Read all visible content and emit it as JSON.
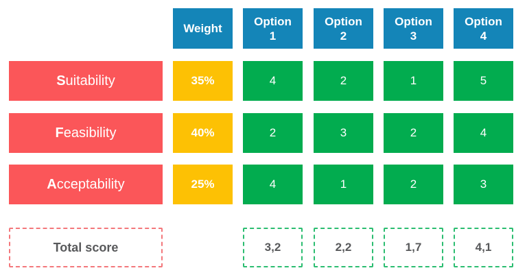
{
  "palette": {
    "blue": "#1485B8",
    "red": "#FB5659",
    "yellow": "#FDC104",
    "green": "#02AC4F",
    "dash_red": "#F3777B",
    "dash_green": "#2BBD70",
    "text_dark": "#58595B",
    "text_light": "#FFFFFF"
  },
  "header": {
    "weight": "Weight",
    "options": [
      {
        "word": "Option",
        "number": "1"
      },
      {
        "word": "Option",
        "number": "2"
      },
      {
        "word": "Option",
        "number": "3"
      },
      {
        "word": "Option",
        "number": "4"
      }
    ]
  },
  "criteria": [
    {
      "label": "Suitability",
      "initial": "S",
      "rest": "uitability",
      "weight": "35%",
      "scores": [
        "4",
        "2",
        "1",
        "5"
      ]
    },
    {
      "label": "Feasibility",
      "initial": "F",
      "rest": "easibility",
      "weight": "40%",
      "scores": [
        "2",
        "3",
        "2",
        "4"
      ]
    },
    {
      "label": "Acceptability",
      "initial": "A",
      "rest": "cceptability",
      "weight": "25%",
      "scores": [
        "4",
        "1",
        "2",
        "3"
      ]
    }
  ],
  "total": {
    "label": "Total score",
    "values": [
      "3,2",
      "2,2",
      "1,7",
      "4,1"
    ]
  },
  "chart_data": {
    "type": "table",
    "columns": [
      "",
      "Weight",
      "Option 1",
      "Option 2",
      "Option 3",
      "Option 4"
    ],
    "rows": [
      [
        "Suitability",
        "35%",
        4,
        2,
        1,
        5
      ],
      [
        "Feasibility",
        "40%",
        2,
        3,
        2,
        4
      ],
      [
        "Acceptability",
        "25%",
        4,
        1,
        2,
        3
      ],
      [
        "Total score",
        "",
        "3,2",
        "2,2",
        "1,7",
        "4,1"
      ]
    ],
    "layout_hints": {
      "header_color": "#1485B8",
      "criteria_color": "#FB5659",
      "weight_color": "#FDC104",
      "score_color": "#02AC4F",
      "totals_style": "dashed-outline"
    }
  }
}
